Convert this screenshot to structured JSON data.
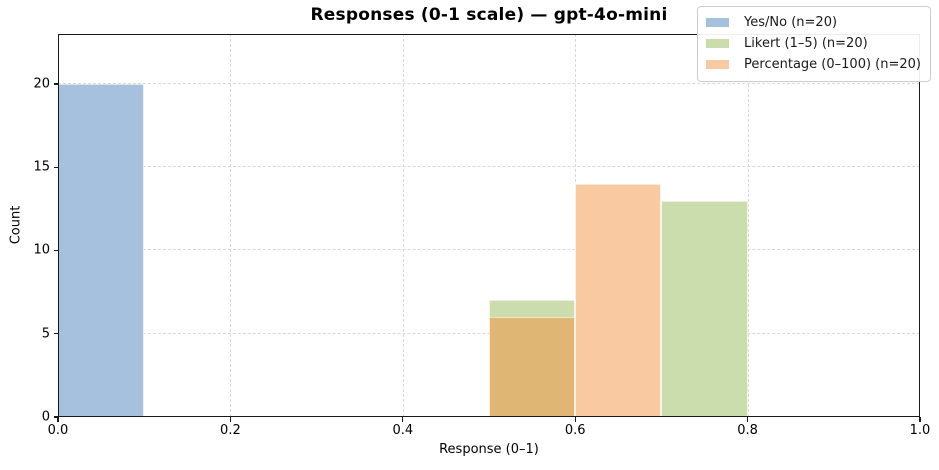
{
  "chart_data": {
    "type": "bar",
    "subtype": "overlapping-histogram",
    "title": "Responses (0-1 scale) — gpt-4o-mini",
    "xlabel": "Response (0–1)",
    "ylabel": "Count",
    "xlim": [
      0,
      1
    ],
    "ylim": [
      0,
      23
    ],
    "xticks": [
      "0.0",
      "0.2",
      "0.4",
      "0.6",
      "0.8",
      "1.0"
    ],
    "yticks": [
      0,
      5,
      10,
      15,
      20
    ],
    "grid": true,
    "grid_style": "dashed",
    "legend_position": "upper right",
    "bin_width": 0.1,
    "series": [
      {
        "name": "Yes/No (n=20)",
        "color": "#a6c1de",
        "bins": [
          {
            "range": [
              0.0,
              0.1
            ],
            "count": 20
          }
        ]
      },
      {
        "name": "Likert (1–5) (n=20)",
        "color": "#cbdcad",
        "bins": [
          {
            "range": [
              0.5,
              0.6
            ],
            "count": 7
          },
          {
            "range": [
              0.7,
              0.8
            ],
            "count": 13
          }
        ]
      },
      {
        "name": "Percentage (0–100) (n=20)",
        "color": "#f9c9a1",
        "bins": [
          {
            "range": [
              0.5,
              0.6
            ],
            "count": 6
          },
          {
            "range": [
              0.6,
              0.7
            ],
            "count": 14
          }
        ]
      }
    ],
    "overlap_color": "#dfb673",
    "spine_color": "#1a1a1a"
  }
}
